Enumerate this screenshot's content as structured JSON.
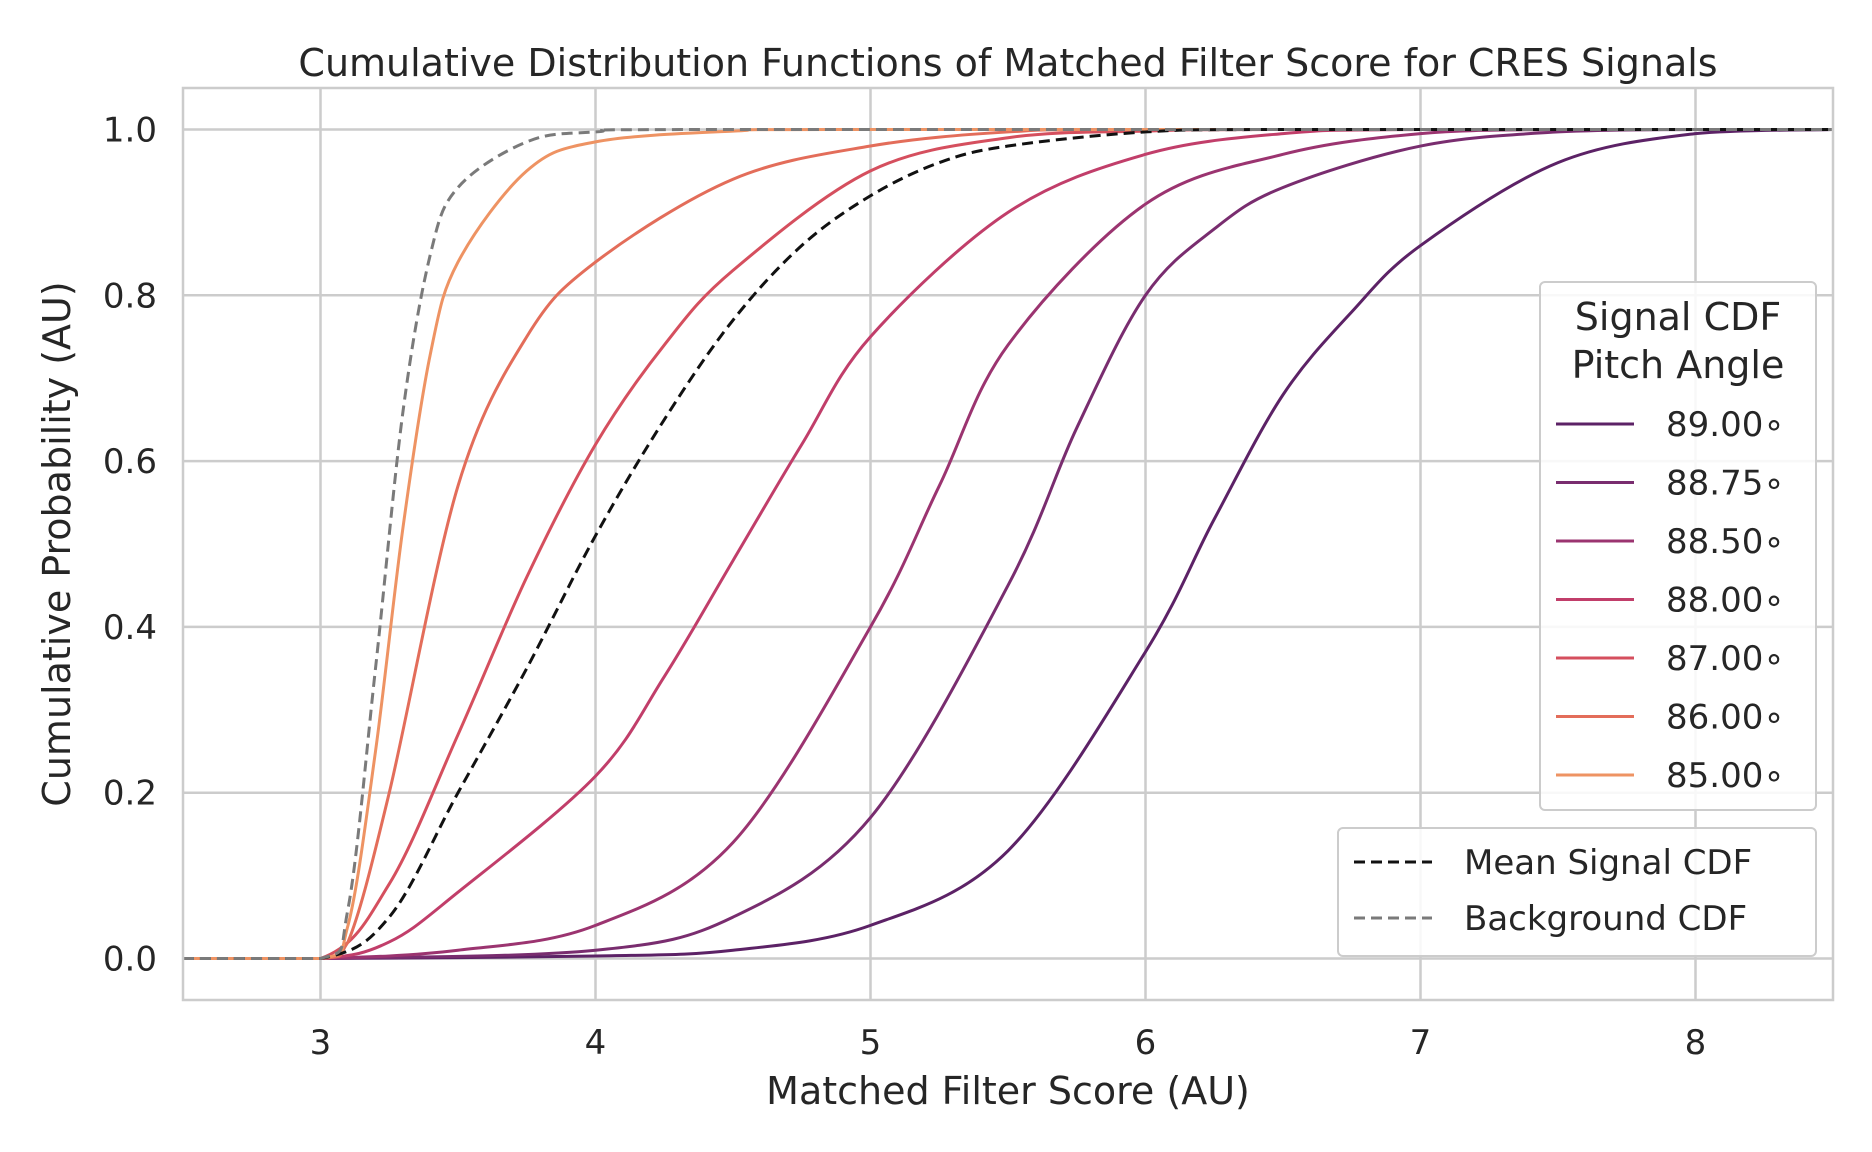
{
  "chart_data": {
    "type": "line",
    "title": "Cumulative Distribution Functions of Matched Filter Score for CRES Signals",
    "xlabel": "Matched Filter Score (AU)",
    "ylabel": "Cumulative Probability (AU)",
    "xlim": [
      2.5,
      8.5
    ],
    "ylim": [
      -0.05,
      1.05
    ],
    "xticks": [
      3,
      4,
      5,
      6,
      7,
      8
    ],
    "yticks": [
      0.0,
      0.2,
      0.4,
      0.6,
      0.8,
      1.0
    ],
    "xtick_labels": [
      "3",
      "4",
      "5",
      "6",
      "7",
      "8"
    ],
    "ytick_labels": [
      "0.0",
      "0.2",
      "0.4",
      "0.6",
      "0.8",
      "1.0"
    ],
    "grid": true,
    "legend_signal": {
      "title_line1": "Signal CDF",
      "title_line2": "Pitch Angle",
      "placement": "center-right"
    },
    "legend_reference": {
      "placement": "lower-right"
    },
    "series": [
      {
        "name": "89.00$^\\circ$",
        "label": "89.00∘",
        "color": "#5c2266",
        "style": "solid",
        "x": [
          2.5,
          3.0,
          4.0,
          4.5,
          5.0,
          5.5,
          6.0,
          6.25,
          6.5,
          6.75,
          7.0,
          7.5,
          8.0,
          8.5
        ],
        "y": [
          0.0,
          0.0,
          0.003,
          0.01,
          0.04,
          0.13,
          0.37,
          0.53,
          0.68,
          0.78,
          0.86,
          0.96,
          0.995,
          1.0
        ]
      },
      {
        "name": "88.75$^\\circ$",
        "label": "88.75∘",
        "color": "#792d6f",
        "style": "solid",
        "x": [
          2.5,
          3.0,
          4.0,
          4.5,
          5.0,
          5.5,
          5.75,
          6.0,
          6.25,
          6.5,
          7.0,
          7.5,
          8.0,
          8.5
        ],
        "y": [
          0.0,
          0.0,
          0.01,
          0.05,
          0.17,
          0.45,
          0.64,
          0.8,
          0.88,
          0.93,
          0.98,
          0.997,
          1.0,
          1.0
        ]
      },
      {
        "name": "88.50$^\\circ$",
        "label": "88.50∘",
        "color": "#9b3470",
        "style": "solid",
        "x": [
          2.5,
          3.0,
          3.5,
          4.0,
          4.5,
          5.0,
          5.25,
          5.5,
          6.0,
          6.5,
          7.0,
          7.5,
          8.0,
          8.5
        ],
        "y": [
          0.0,
          0.0,
          0.01,
          0.04,
          0.14,
          0.4,
          0.57,
          0.74,
          0.91,
          0.97,
          0.995,
          1.0,
          1.0,
          1.0
        ]
      },
      {
        "name": "88.00$^\\circ$",
        "label": "88.00∘",
        "color": "#c13e6a",
        "style": "solid",
        "x": [
          2.5,
          3.0,
          3.25,
          3.5,
          4.0,
          4.25,
          4.5,
          4.75,
          5.0,
          5.5,
          6.0,
          6.5,
          7.0,
          8.5
        ],
        "y": [
          0.0,
          0.0,
          0.02,
          0.08,
          0.22,
          0.34,
          0.48,
          0.62,
          0.75,
          0.9,
          0.97,
          0.995,
          1.0,
          1.0
        ]
      },
      {
        "name": "87.00$^\\circ$",
        "label": "87.00∘",
        "color": "#d54f5e",
        "style": "solid",
        "x": [
          2.5,
          3.0,
          3.25,
          3.5,
          3.75,
          4.0,
          4.25,
          4.5,
          5.0,
          5.5,
          6.0,
          6.5,
          8.5
        ],
        "y": [
          0.0,
          0.0,
          0.09,
          0.27,
          0.46,
          0.62,
          0.74,
          0.83,
          0.95,
          0.99,
          0.998,
          1.0,
          1.0
        ]
      },
      {
        "name": "86.00$^\\circ$",
        "label": "86.00∘",
        "color": "#e36d5a",
        "style": "solid",
        "x": [
          2.5,
          3.0,
          3.1,
          3.25,
          3.5,
          3.75,
          4.0,
          4.5,
          5.0,
          5.5,
          6.0,
          8.5
        ],
        "y": [
          0.0,
          0.0,
          0.02,
          0.2,
          0.57,
          0.75,
          0.84,
          0.94,
          0.98,
          0.997,
          1.0,
          1.0
        ]
      },
      {
        "name": "85.00$^\\circ$",
        "label": "85.00∘",
        "color": "#ee9363",
        "style": "solid",
        "x": [
          2.5,
          3.0,
          3.1,
          3.2,
          3.3,
          3.4,
          3.5,
          3.75,
          4.0,
          4.5,
          5.0,
          8.5
        ],
        "y": [
          0.0,
          0.0,
          0.04,
          0.25,
          0.52,
          0.73,
          0.84,
          0.95,
          0.985,
          0.998,
          1.0,
          1.0
        ]
      },
      {
        "name": "Mean Signal CDF",
        "label": "Mean Signal CDF",
        "color": "#111111",
        "style": "dashed",
        "x": [
          2.5,
          3.0,
          3.25,
          3.5,
          3.75,
          4.0,
          4.25,
          4.5,
          4.75,
          5.0,
          5.25,
          5.5,
          6.0,
          6.5,
          8.5
        ],
        "y": [
          0.0,
          0.0,
          0.05,
          0.2,
          0.35,
          0.51,
          0.65,
          0.77,
          0.86,
          0.92,
          0.96,
          0.98,
          0.997,
          1.0,
          1.0
        ]
      },
      {
        "name": "Background CDF",
        "label": "Background CDF",
        "color": "#7a7a7a",
        "style": "dashed",
        "x": [
          2.5,
          3.0,
          3.1,
          3.2,
          3.3,
          3.4,
          3.5,
          3.75,
          4.0,
          4.5,
          8.5
        ],
        "y": [
          0.0,
          0.0,
          0.06,
          0.35,
          0.66,
          0.85,
          0.93,
          0.985,
          0.997,
          1.0,
          1.0
        ]
      }
    ]
  }
}
